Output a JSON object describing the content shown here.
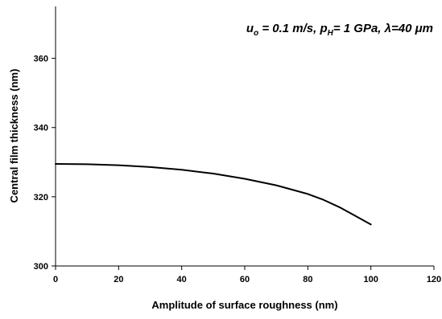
{
  "chart_data": {
    "type": "line",
    "xlabel": "Amplitude of surface roughness (nm)",
    "ylabel": "Central film thickness (nm)",
    "xlim": [
      0,
      120
    ],
    "ylim": [
      300,
      375
    ],
    "xticks": [
      0,
      20,
      40,
      60,
      80,
      100,
      120
    ],
    "yticks": [
      300,
      320,
      340,
      360
    ],
    "grid": false,
    "legend": "none",
    "annotation": {
      "u": "u",
      "u_sub": "o",
      "u_value": " = 0.1 m/s, ",
      "p": "p",
      "p_sub": "H",
      "p_value": "= 1 GPa, ",
      "lambda": "λ",
      "lambda_value": "=40 μm"
    },
    "series": [
      {
        "color": "#000000",
        "x": [
          0,
          10,
          20,
          30,
          40,
          50,
          60,
          70,
          80,
          85,
          90,
          95,
          100
        ],
        "y": [
          329.5,
          329.4,
          329.1,
          328.6,
          327.8,
          326.7,
          325.2,
          323.3,
          320.8,
          319.1,
          317.0,
          314.5,
          312.0
        ]
      }
    ]
  }
}
